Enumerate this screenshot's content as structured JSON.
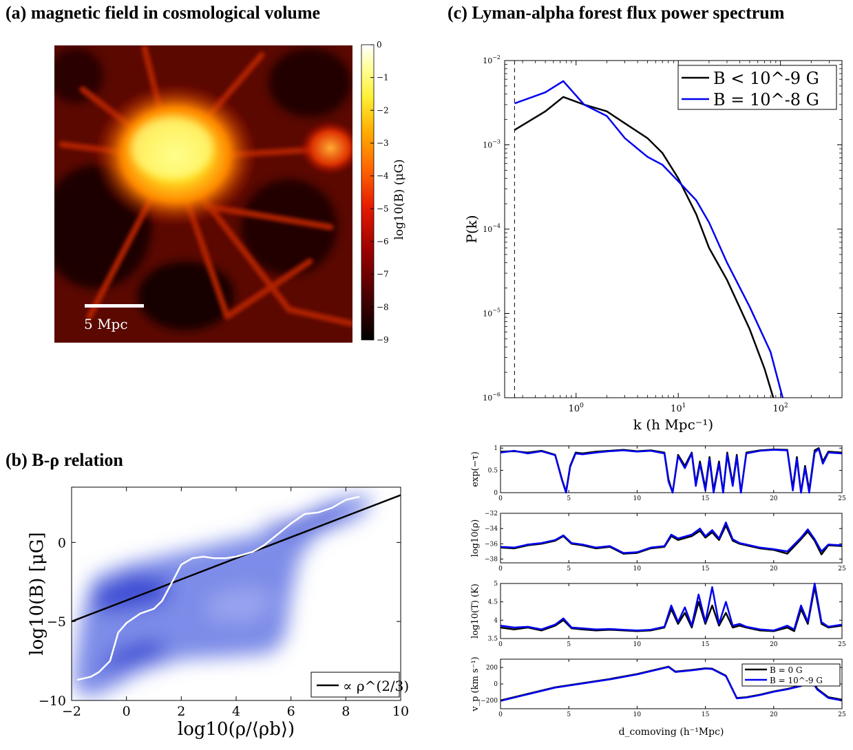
{
  "titles": {
    "a": "(a) magnetic field in cosmological volume",
    "b": "(b) B-ρ relation",
    "c": "(c) Lyman-alpha forest flux power spectrum"
  },
  "colors": {
    "black_series": "#000000",
    "blue_series": "#0000ee",
    "scatter_blue": "#3344dd",
    "median_white": "#ffffff"
  },
  "chart_data": [
    {
      "id": "a",
      "type": "heatmap",
      "title": "(a) magnetic field in cosmological volume",
      "colorbar_label": "log10(B) (μG)",
      "colorbar_ticks": [
        "0",
        "−1",
        "−2",
        "−3",
        "−4",
        "−5",
        "−6",
        "−7",
        "−8",
        "−9"
      ],
      "colorbar_range": [
        -9,
        0
      ],
      "scale_bar_label": "5 Mpc"
    },
    {
      "id": "b",
      "type": "scatter",
      "title": "(b) B-ρ relation",
      "xlabel": "log10(ρ/⟨ρb⟩)",
      "ylabel": "log10(B) [μG]",
      "xlim": [
        -2,
        10
      ],
      "ylim": [
        -10,
        3.5
      ],
      "xticks": [
        "−2",
        "0",
        "2",
        "4",
        "6",
        "8",
        "10"
      ],
      "yticks": [
        "−10",
        "−5",
        "0"
      ],
      "legend_label": "∝ ρ^(2/3)",
      "legend_position": "bottom-right",
      "fit_line": {
        "x": [
          -2,
          10
        ],
        "y": [
          -5.0,
          3.0
        ]
      },
      "median": {
        "x": [
          -1.8,
          -1.3,
          -1.0,
          -0.6,
          -0.3,
          0.0,
          0.5,
          1.0,
          1.3,
          1.7,
          2.0,
          2.4,
          2.8,
          3.2,
          3.6,
          4.0,
          4.6,
          5.0,
          5.5,
          6.0,
          6.5,
          7.0,
          7.5,
          8.0,
          8.5
        ],
        "y": [
          -8.7,
          -8.5,
          -8.2,
          -7.5,
          -5.7,
          -5.1,
          -4.5,
          -4.2,
          -3.7,
          -2.4,
          -1.4,
          -1.0,
          -0.9,
          -1.0,
          -1.0,
          -0.9,
          -0.6,
          -0.2,
          0.5,
          1.2,
          1.8,
          1.9,
          2.2,
          2.7,
          2.9
        ]
      }
    },
    {
      "id": "c",
      "type": "line",
      "title": "(c) Lyman-alpha forest flux power spectrum",
      "xlabel": "k (h Mpc⁻¹)",
      "ylabel": "P(k)",
      "x_scale": "log",
      "y_scale": "log",
      "xlim": [
        0.2,
        400
      ],
      "ylim": [
        1e-06,
        0.01
      ],
      "xticks": [
        "10^0",
        "10^1",
        "10^2"
      ],
      "yticks": [
        "10^-6",
        "10^-5",
        "10^-4",
        "10^-3",
        "10^-2"
      ],
      "vertical_dashed_x": 0.25,
      "legend_position": "top-right",
      "series": [
        {
          "name": "B < 10^-9 G",
          "color": "#000000",
          "x": [
            0.25,
            0.5,
            0.75,
            1.2,
            2,
            3,
            5,
            7,
            10,
            15,
            20,
            30,
            50,
            70,
            85
          ],
          "y": [
            0.0015,
            0.0025,
            0.0037,
            0.003,
            0.0025,
            0.0018,
            0.0012,
            0.0008,
            0.0004,
            0.00015,
            6e-05,
            2.5e-05,
            6.5e-06,
            2.2e-06,
            1e-06
          ]
        },
        {
          "name": "B = 10^-8 G",
          "color": "#0000ee",
          "x": [
            0.25,
            0.5,
            0.75,
            1.2,
            2,
            3,
            4,
            5,
            7,
            10,
            15,
            20,
            30,
            50,
            80,
            105
          ],
          "y": [
            0.0031,
            0.0042,
            0.0057,
            0.003,
            0.0022,
            0.0012,
            0.0009,
            0.00072,
            0.00058,
            0.00037,
            0.00022,
            0.00012,
            4e-05,
            1.2e-05,
            3.5e-06,
            1e-06
          ]
        }
      ]
    },
    {
      "id": "c1",
      "type": "line",
      "ylabel": "exp(−τ)",
      "xlim": [
        0,
        25
      ],
      "ylim": [
        0,
        1.05
      ],
      "xticks": [
        "0",
        "5",
        "10",
        "15",
        "20",
        "25"
      ],
      "yticks": [
        "0",
        "0.5",
        "1"
      ],
      "series": [
        {
          "name": "",
          "color": "#000000",
          "x": [
            0,
            1,
            2,
            3,
            4,
            4.5,
            4.8,
            5.1,
            5.5,
            6,
            7,
            8,
            9,
            10,
            11,
            12,
            12.3,
            12.6,
            13,
            13.5,
            14,
            14.3,
            14.6,
            15,
            15.3,
            15.6,
            16,
            16.3,
            16.6,
            17,
            17.3,
            17.6,
            18,
            19,
            20,
            21,
            21.4,
            21.7,
            22,
            22.3,
            22.6,
            23,
            23.3,
            23.6,
            24,
            25
          ],
          "y": [
            0.92,
            0.93,
            0.9,
            0.94,
            0.85,
            0.3,
            0.02,
            0.6,
            0.9,
            0.88,
            0.92,
            0.94,
            0.96,
            0.93,
            0.95,
            0.9,
            0.3,
            0.0,
            0.85,
            0.6,
            0.9,
            0.2,
            0.7,
            0.1,
            0.8,
            0.05,
            0.7,
            0.0,
            0.9,
            0.2,
            0.85,
            0.0,
            0.9,
            0.95,
            0.97,
            0.96,
            0.1,
            0.8,
            0.0,
            0.6,
            0.05,
            0.95,
            1.0,
            0.7,
            0.92,
            0.9
          ]
        },
        {
          "name": "",
          "color": "#0000ee",
          "x": [
            0,
            1,
            2,
            3,
            4,
            4.5,
            4.8,
            5.1,
            5.5,
            6,
            7,
            8,
            9,
            10,
            11,
            12,
            12.3,
            12.6,
            13,
            13.5,
            14,
            14.3,
            14.6,
            15,
            15.3,
            15.6,
            16,
            16.3,
            16.6,
            17,
            17.3,
            17.6,
            18,
            19,
            20,
            21,
            21.4,
            21.7,
            22,
            22.3,
            22.6,
            23,
            23.3,
            23.6,
            24,
            25
          ],
          "y": [
            0.9,
            0.94,
            0.88,
            0.93,
            0.84,
            0.28,
            0.0,
            0.58,
            0.88,
            0.86,
            0.9,
            0.93,
            0.95,
            0.92,
            0.94,
            0.88,
            0.25,
            0.0,
            0.82,
            0.55,
            0.88,
            0.15,
            0.65,
            0.05,
            0.75,
            0.0,
            0.65,
            0.0,
            0.85,
            0.15,
            0.8,
            0.0,
            0.88,
            0.94,
            0.96,
            0.95,
            0.05,
            0.75,
            0.0,
            0.55,
            0.0,
            0.9,
            0.98,
            0.65,
            0.9,
            0.88
          ]
        }
      ]
    },
    {
      "id": "c2",
      "type": "line",
      "ylabel": "log10(ρ)",
      "xlim": [
        0,
        25
      ],
      "ylim": [
        -38.5,
        -32
      ],
      "xticks": [
        "0",
        "5",
        "10",
        "15",
        "20",
        "25"
      ],
      "yticks": [
        "−38",
        "−36",
        "−34",
        "−32"
      ],
      "series": [
        {
          "name": "",
          "color": "#000000",
          "x": [
            0,
            1,
            2,
            3,
            4,
            4.6,
            5.2,
            6,
            7,
            8,
            9,
            10,
            11,
            12,
            12.5,
            13,
            14,
            14.6,
            15,
            15.5,
            16,
            16.5,
            17,
            17.5,
            18,
            19,
            20,
            21,
            22,
            22.5,
            23,
            23.5,
            24,
            25
          ],
          "y": [
            -36.5,
            -36.6,
            -36.2,
            -36.0,
            -35.6,
            -35.0,
            -36.0,
            -36.2,
            -36.6,
            -36.4,
            -37.3,
            -37.2,
            -36.6,
            -36.4,
            -35.0,
            -35.5,
            -35.0,
            -34.3,
            -35.2,
            -34.5,
            -35.5,
            -33.6,
            -35.6,
            -36.0,
            -36.2,
            -36.6,
            -36.8,
            -37.3,
            -35.4,
            -34.4,
            -35.6,
            -37.4,
            -36.2,
            -36.3
          ]
        },
        {
          "name": "",
          "color": "#0000ee",
          "x": [
            0,
            1,
            2,
            3,
            4,
            4.6,
            5.2,
            6,
            7,
            8,
            9,
            10,
            11,
            12,
            12.5,
            13,
            14,
            14.6,
            15,
            15.5,
            16,
            16.5,
            17,
            17.5,
            18,
            19,
            20,
            21,
            22,
            22.5,
            23,
            23.5,
            24,
            25
          ],
          "y": [
            -36.4,
            -36.5,
            -36.1,
            -35.9,
            -35.5,
            -34.9,
            -35.9,
            -36.1,
            -36.5,
            -36.3,
            -37.2,
            -37.1,
            -36.5,
            -36.3,
            -34.8,
            -35.3,
            -34.8,
            -34.0,
            -35.0,
            -34.2,
            -35.3,
            -33.2,
            -35.4,
            -35.9,
            -36.1,
            -36.5,
            -36.7,
            -37.0,
            -35.2,
            -34.1,
            -35.4,
            -37.0,
            -36.1,
            -36.2
          ]
        }
      ]
    },
    {
      "id": "c3",
      "type": "line",
      "ylabel": "log10(T) (K)",
      "xlim": [
        0,
        25
      ],
      "ylim": [
        3.5,
        5
      ],
      "xticks": [
        "0",
        "5",
        "10",
        "15",
        "20",
        "25"
      ],
      "yticks": [
        "3.5",
        "4",
        "4.5",
        "5"
      ],
      "series": [
        {
          "name": "",
          "color": "#000000",
          "x": [
            0,
            1,
            2,
            3,
            4,
            4.6,
            5.2,
            6,
            7,
            8,
            9,
            10,
            11,
            12,
            12.5,
            13,
            13.5,
            14,
            14.5,
            15,
            15.5,
            16,
            16.5,
            17,
            17.5,
            18,
            19,
            20,
            21,
            21.5,
            22,
            22.5,
            23,
            23.5,
            24,
            25
          ],
          "y": [
            3.8,
            3.75,
            3.8,
            3.72,
            3.85,
            4.0,
            3.78,
            3.75,
            3.72,
            3.74,
            3.72,
            3.7,
            3.72,
            3.8,
            4.3,
            3.9,
            4.2,
            3.8,
            4.5,
            3.9,
            4.4,
            3.85,
            4.2,
            3.8,
            3.85,
            3.8,
            3.72,
            3.7,
            3.8,
            3.7,
            4.3,
            3.9,
            4.9,
            3.9,
            3.8,
            3.85
          ]
        },
        {
          "name": "",
          "color": "#0000ee",
          "x": [
            0,
            1,
            2,
            3,
            4,
            4.6,
            5.2,
            6,
            7,
            8,
            9,
            10,
            11,
            12,
            12.5,
            13,
            13.5,
            14,
            14.5,
            15,
            15.5,
            16,
            16.5,
            17,
            17.5,
            18,
            19,
            20,
            21,
            21.5,
            22,
            22.5,
            23,
            23.5,
            24,
            25
          ],
          "y": [
            3.85,
            3.8,
            3.82,
            3.75,
            3.88,
            4.05,
            3.8,
            3.78,
            3.75,
            3.76,
            3.74,
            3.72,
            3.74,
            3.82,
            4.4,
            3.95,
            4.35,
            3.85,
            4.7,
            3.95,
            4.9,
            3.9,
            4.5,
            3.85,
            3.9,
            3.82,
            3.75,
            3.72,
            3.85,
            3.75,
            4.4,
            3.95,
            5.0,
            3.95,
            3.82,
            3.88
          ]
        }
      ]
    },
    {
      "id": "c4",
      "type": "line",
      "ylabel": "v_p (km s⁻¹)",
      "xlabel": "d_comoving (h⁻¹Mpc)",
      "xlim": [
        0,
        25
      ],
      "ylim": [
        -300,
        300
      ],
      "xticks": [
        "0",
        "5",
        "10",
        "15",
        "20",
        "25"
      ],
      "yticks": [
        "−200",
        "0",
        "200"
      ],
      "legend_position": "top-right",
      "series": [
        {
          "name": "B = 0 G",
          "color": "#000000",
          "x": [
            0,
            2,
            4,
            6,
            8,
            10,
            12.3,
            12.8,
            14,
            15,
            15.5,
            16.5,
            17.3,
            18,
            19,
            20,
            21,
            22,
            22.8,
            23.2,
            24,
            25
          ],
          "y": [
            -200,
            -120,
            -40,
            10,
            60,
            120,
            210,
            150,
            170,
            190,
            185,
            100,
            -170,
            -160,
            -130,
            -90,
            -60,
            -20,
            40,
            -60,
            -160,
            -190
          ]
        },
        {
          "name": "B = 10^-9 G",
          "color": "#0000ee",
          "x": [
            0,
            2,
            4,
            6,
            8,
            10,
            12.3,
            12.8,
            14,
            15,
            15.5,
            16.5,
            17.3,
            18,
            19,
            20,
            21,
            22,
            22.8,
            23.2,
            24,
            25
          ],
          "y": [
            -205,
            -125,
            -45,
            5,
            55,
            115,
            205,
            145,
            165,
            185,
            180,
            95,
            -175,
            -165,
            -135,
            -95,
            -65,
            -25,
            30,
            -70,
            -170,
            -200
          ]
        }
      ]
    }
  ]
}
